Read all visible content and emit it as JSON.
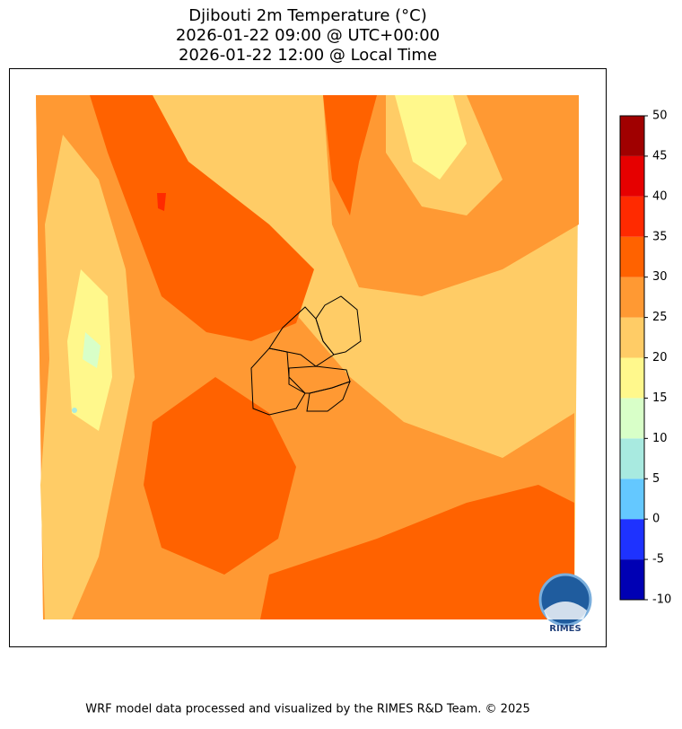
{
  "map": {
    "title": [
      "Djibouti 2m Temperature (°C)",
      "2026-01-22 09:00 @ UTC+00:00",
      "2026-01-22 12:00 @ Local Time"
    ],
    "colorbar": {
      "ticks": [
        -10,
        -5,
        0,
        5,
        10,
        15,
        20,
        25,
        30,
        35,
        40,
        45,
        50
      ],
      "colors": [
        "#0000b4",
        "#1e32ff",
        "#64c8ff",
        "#a8eae0",
        "#d8ffc8",
        "#fff88c",
        "#ffcc66",
        "#ff9933",
        "#ff6200",
        "#ff2a00",
        "#e60000",
        "#a00000"
      ]
    },
    "logo": "RIMES"
  },
  "footer": "WRF model data processed and visualized by the RIMES R&D Team. © 2025"
}
